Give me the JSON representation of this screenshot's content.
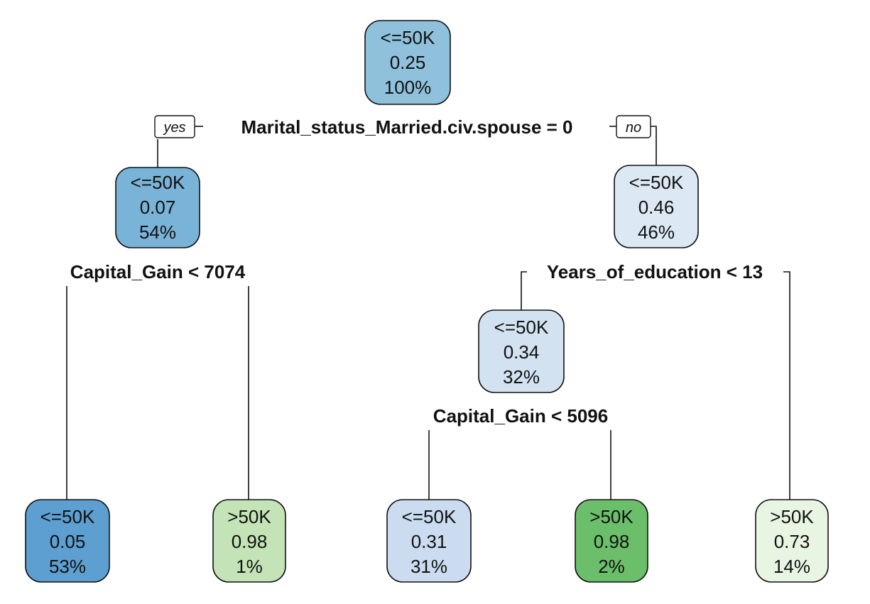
{
  "tree": {
    "root_tags": {
      "yes": "yes",
      "no": "no"
    },
    "colors": {
      "root": "#8fc1dc",
      "n_left": "#7ab3d8",
      "n_right": "#dce8f4",
      "n_mid": "#d2e2f1",
      "leaf1": "#5d9fd0",
      "leaf2": "#c4e3b6",
      "leaf3": "#cbdcf0",
      "leaf4": "#6bbf6b",
      "leaf5": "#e8f5e2",
      "line": "#111111"
    },
    "nodes": {
      "root": {
        "class": "<=50K",
        "prob": "0.25",
        "pct": "100%"
      },
      "n_left": {
        "class": "<=50K",
        "prob": "0.07",
        "pct": "54%"
      },
      "n_right": {
        "class": "<=50K",
        "prob": "0.46",
        "pct": "46%"
      },
      "n_mid": {
        "class": "<=50K",
        "prob": "0.34",
        "pct": "32%"
      },
      "leaf1": {
        "class": "<=50K",
        "prob": "0.05",
        "pct": "53%"
      },
      "leaf2": {
        "class": ">50K",
        "prob": "0.98",
        "pct": "1%"
      },
      "leaf3": {
        "class": "<=50K",
        "prob": "0.31",
        "pct": "31%"
      },
      "leaf4": {
        "class": ">50K",
        "prob": "0.98",
        "pct": "2%"
      },
      "leaf5": {
        "class": ">50K",
        "prob": "0.73",
        "pct": "14%"
      }
    },
    "splits": {
      "root": "Marital_status_Married.civ.spouse = 0",
      "n_left": "Capital_Gain < 7074",
      "n_right": "Years_of_education < 13",
      "n_mid": "Capital_Gain < 5096"
    }
  }
}
